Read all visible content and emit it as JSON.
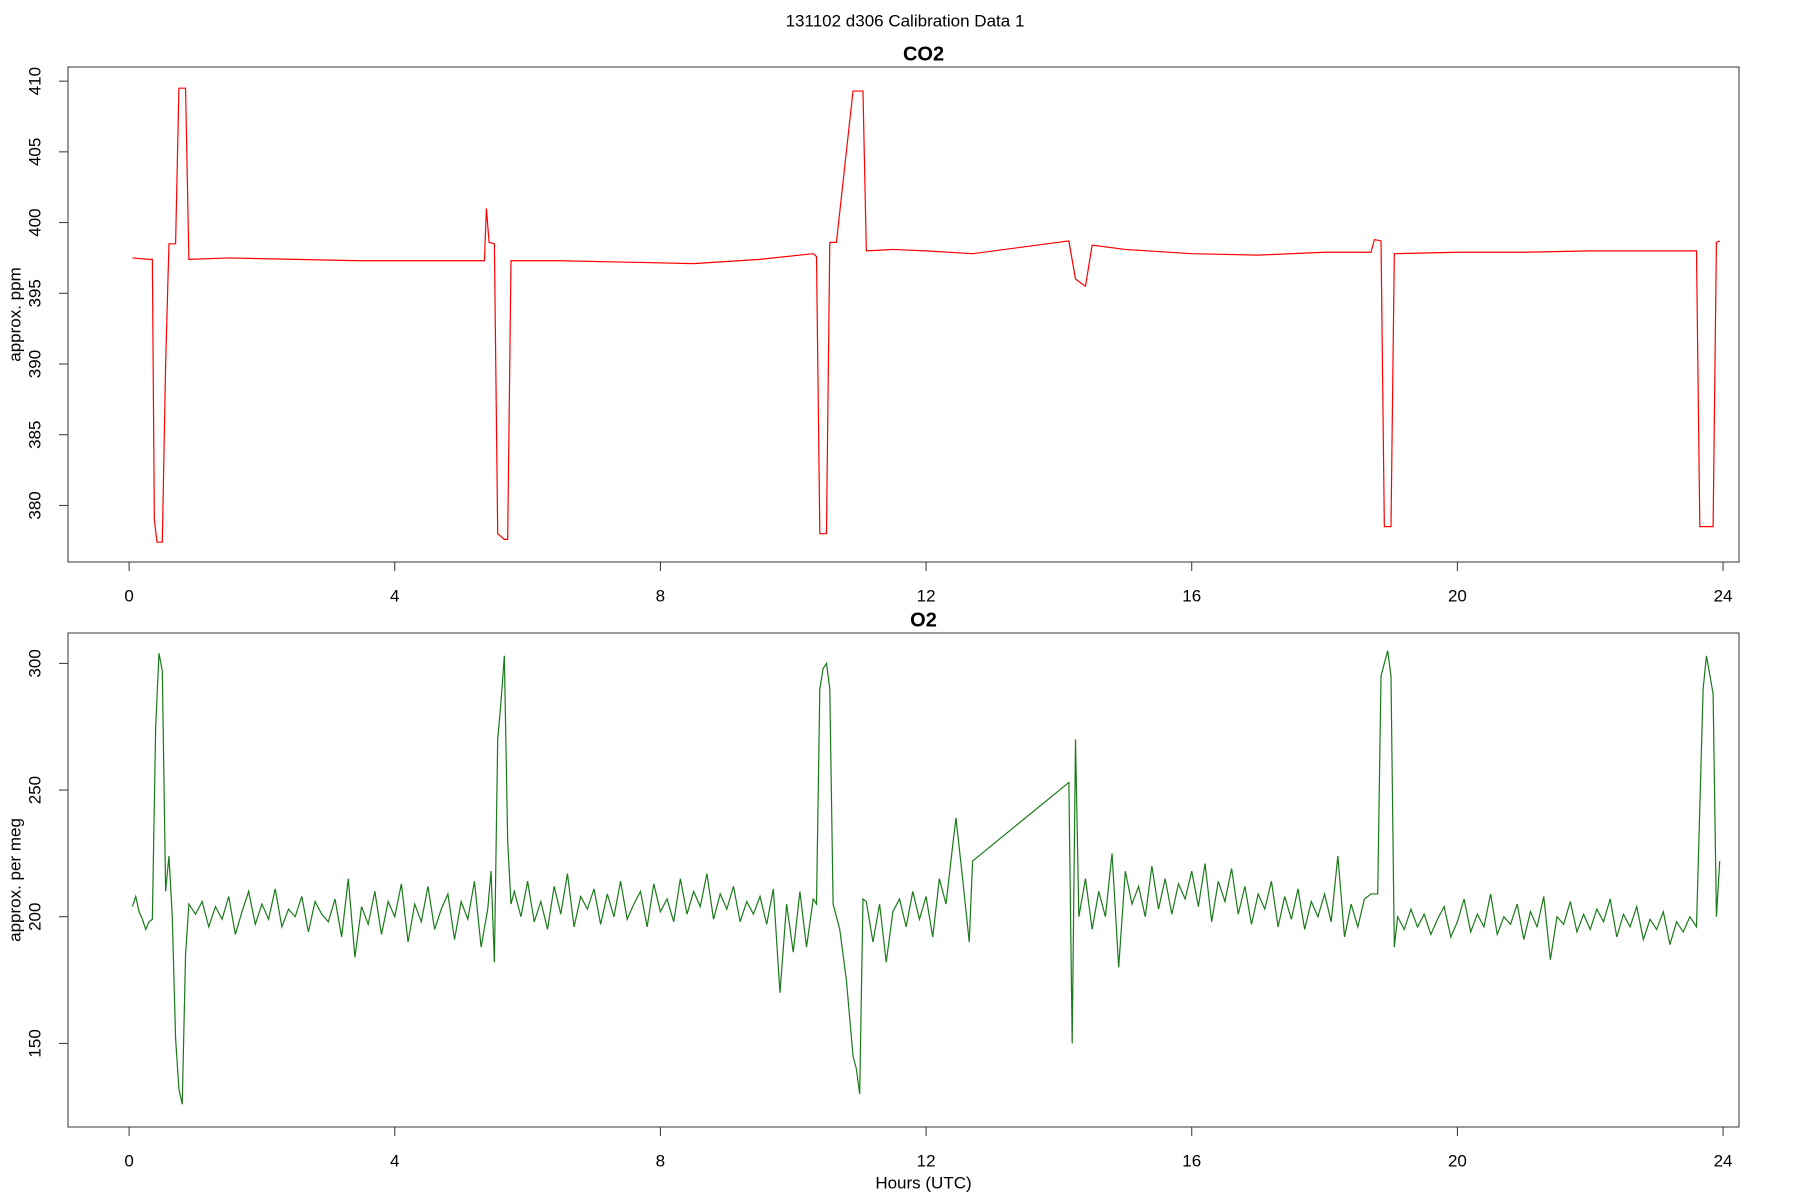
{
  "title": "131102   d306   Calibration Data 1",
  "chart_data": [
    {
      "type": "line",
      "title": "CO2",
      "ylabel": "approx. ppm",
      "color": "#ff0000",
      "xlim": [
        -0.92,
        24.24
      ],
      "ylim": [
        376,
        411
      ],
      "xticks": [
        0,
        4,
        8,
        12,
        16,
        20,
        24
      ],
      "yticks": [
        380,
        385,
        390,
        395,
        400,
        405,
        410
      ],
      "x": [
        0.05,
        0.3,
        0.35,
        0.38,
        0.42,
        0.5,
        0.55,
        0.6,
        0.7,
        0.75,
        0.85,
        0.9,
        1.5,
        2.5,
        3.5,
        4.5,
        5.35,
        5.38,
        5.42,
        5.5,
        5.55,
        5.65,
        5.7,
        5.75,
        6.5,
        7.5,
        8.5,
        9.5,
        10.3,
        10.35,
        10.4,
        10.5,
        10.55,
        10.65,
        10.9,
        11.05,
        11.1,
        11.5,
        12,
        12.7,
        14.15,
        14.25,
        14.4,
        14.5,
        15,
        16,
        17,
        18,
        18.7,
        18.75,
        18.85,
        18.9,
        19.0,
        19.05,
        20,
        21,
        22,
        23.6,
        23.65,
        23.75,
        23.85,
        23.9,
        23.95
      ],
      "values": [
        397.5,
        397.4,
        397.4,
        379,
        377.4,
        377.4,
        390,
        398.5,
        398.5,
        409.5,
        409.5,
        397.4,
        397.5,
        397.4,
        397.3,
        397.3,
        397.3,
        401,
        398.6,
        398.5,
        378,
        377.6,
        377.6,
        397.3,
        397.3,
        397.2,
        397.1,
        397.4,
        397.8,
        397.6,
        378,
        378,
        398.6,
        398.6,
        409.3,
        409.3,
        398,
        398.1,
        398,
        397.8,
        398.7,
        396,
        395.5,
        398.4,
        398.1,
        397.8,
        397.7,
        397.9,
        397.9,
        398.8,
        398.7,
        378.5,
        378.5,
        397.8,
        397.9,
        397.9,
        398,
        398,
        378.5,
        378.5,
        378.5,
        398.6,
        398.7
      ]
    },
    {
      "type": "line",
      "title": "O2",
      "ylabel": "approx. per meg",
      "xlabel": "Hours (UTC)",
      "color": "#1a7a1a",
      "xlim": [
        -0.92,
        24.24
      ],
      "ylim": [
        117,
        312
      ],
      "xticks": [
        0,
        4,
        8,
        12,
        16,
        20,
        24
      ],
      "yticks": [
        150,
        200,
        250,
        300
      ],
      "x": [
        0.05,
        0.1,
        0.15,
        0.2,
        0.25,
        0.3,
        0.35,
        0.4,
        0.45,
        0.5,
        0.55,
        0.6,
        0.65,
        0.7,
        0.75,
        0.8,
        0.85,
        0.9,
        1.0,
        1.1,
        1.2,
        1.3,
        1.4,
        1.5,
        1.6,
        1.7,
        1.8,
        1.9,
        2.0,
        2.1,
        2.2,
        2.3,
        2.4,
        2.5,
        2.6,
        2.7,
        2.8,
        2.9,
        3.0,
        3.1,
        3.2,
        3.3,
        3.4,
        3.5,
        3.6,
        3.7,
        3.8,
        3.9,
        4.0,
        4.1,
        4.2,
        4.3,
        4.4,
        4.5,
        4.6,
        4.7,
        4.8,
        4.9,
        5.0,
        5.1,
        5.2,
        5.3,
        5.4,
        5.45,
        5.5,
        5.55,
        5.6,
        5.65,
        5.7,
        5.75,
        5.8,
        5.9,
        6.0,
        6.1,
        6.2,
        6.3,
        6.4,
        6.5,
        6.6,
        6.7,
        6.8,
        6.9,
        7.0,
        7.1,
        7.2,
        7.3,
        7.4,
        7.5,
        7.6,
        7.7,
        7.8,
        7.9,
        8.0,
        8.1,
        8.2,
        8.3,
        8.4,
        8.5,
        8.6,
        8.7,
        8.8,
        8.9,
        9.0,
        9.1,
        9.2,
        9.3,
        9.4,
        9.5,
        9.6,
        9.7,
        9.8,
        9.9,
        10.0,
        10.1,
        10.2,
        10.3,
        10.35,
        10.4,
        10.45,
        10.5,
        10.55,
        10.6,
        10.7,
        10.8,
        10.9,
        10.95,
        11.0,
        11.05,
        11.1,
        11.2,
        11.3,
        11.4,
        11.5,
        11.6,
        11.7,
        11.8,
        11.9,
        12.0,
        12.1,
        12.2,
        12.3,
        12.4,
        12.45,
        12.55,
        12.65,
        12.7,
        14.15,
        14.2,
        14.25,
        14.3,
        14.4,
        14.5,
        14.6,
        14.7,
        14.8,
        14.9,
        15.0,
        15.1,
        15.2,
        15.3,
        15.4,
        15.5,
        15.6,
        15.7,
        15.8,
        15.9,
        16.0,
        16.1,
        16.2,
        16.3,
        16.4,
        16.5,
        16.6,
        16.7,
        16.8,
        16.9,
        17.0,
        17.1,
        17.2,
        17.3,
        17.4,
        17.5,
        17.6,
        17.7,
        17.8,
        17.9,
        18.0,
        18.1,
        18.2,
        18.3,
        18.4,
        18.5,
        18.6,
        18.7,
        18.8,
        18.85,
        18.95,
        19.0,
        19.05,
        19.1,
        19.2,
        19.3,
        19.4,
        19.5,
        19.6,
        19.7,
        19.8,
        19.9,
        20.0,
        20.1,
        20.2,
        20.3,
        20.4,
        20.5,
        20.6,
        20.7,
        20.8,
        20.9,
        21.0,
        21.1,
        21.2,
        21.3,
        21.4,
        21.5,
        21.6,
        21.7,
        21.8,
        21.9,
        22.0,
        22.1,
        22.2,
        22.3,
        22.4,
        22.5,
        22.6,
        22.7,
        22.8,
        22.9,
        23.0,
        23.1,
        23.2,
        23.3,
        23.4,
        23.5,
        23.6,
        23.7,
        23.75,
        23.85,
        23.9,
        23.95
      ],
      "values": [
        204,
        208,
        202,
        199,
        195,
        198,
        199,
        275,
        304,
        297,
        210,
        224,
        200,
        152,
        132,
        126,
        185,
        205,
        201,
        206,
        196,
        204,
        199,
        208,
        193,
        202,
        210,
        197,
        205,
        199,
        211,
        196,
        203,
        200,
        208,
        194,
        206,
        201,
        198,
        207,
        192,
        215,
        184,
        204,
        197,
        210,
        193,
        206,
        200,
        213,
        190,
        205,
        198,
        212,
        195,
        203,
        209,
        191,
        206,
        199,
        214,
        188,
        203,
        218,
        182,
        270,
        285,
        303,
        230,
        205,
        210,
        200,
        214,
        198,
        206,
        195,
        212,
        201,
        217,
        196,
        208,
        203,
        211,
        197,
        209,
        200,
        214,
        199,
        205,
        210,
        196,
        213,
        202,
        207,
        198,
        215,
        201,
        210,
        204,
        217,
        199,
        209,
        203,
        212,
        198,
        206,
        201,
        208,
        197,
        211,
        170,
        205,
        186,
        210,
        188,
        207,
        205,
        290,
        298,
        300,
        290,
        205,
        195,
        175,
        145,
        140,
        130,
        207,
        206,
        190,
        205,
        182,
        202,
        207,
        196,
        210,
        199,
        208,
        192,
        215,
        205,
        228,
        239,
        215,
        190,
        222,
        253,
        150,
        270,
        200,
        215,
        195,
        210,
        200,
        225,
        180,
        218,
        205,
        212,
        200,
        220,
        203,
        215,
        201,
        213,
        207,
        218,
        204,
        221,
        198,
        214,
        206,
        219,
        201,
        212,
        197,
        209,
        203,
        214,
        196,
        208,
        199,
        211,
        195,
        206,
        200,
        209,
        198,
        224,
        192,
        205,
        196,
        207,
        209,
        209,
        295,
        305,
        295,
        188,
        200,
        195,
        203,
        196,
        201,
        193,
        199,
        204,
        192,
        198,
        207,
        194,
        201,
        196,
        209,
        193,
        200,
        197,
        205,
        191,
        202,
        196,
        208,
        183,
        200,
        197,
        206,
        194,
        201,
        195,
        203,
        198,
        207,
        192,
        201,
        196,
        204,
        191,
        199,
        195,
        202,
        189,
        198,
        194,
        200,
        196,
        290,
        303,
        288,
        200,
        222
      ]
    }
  ]
}
